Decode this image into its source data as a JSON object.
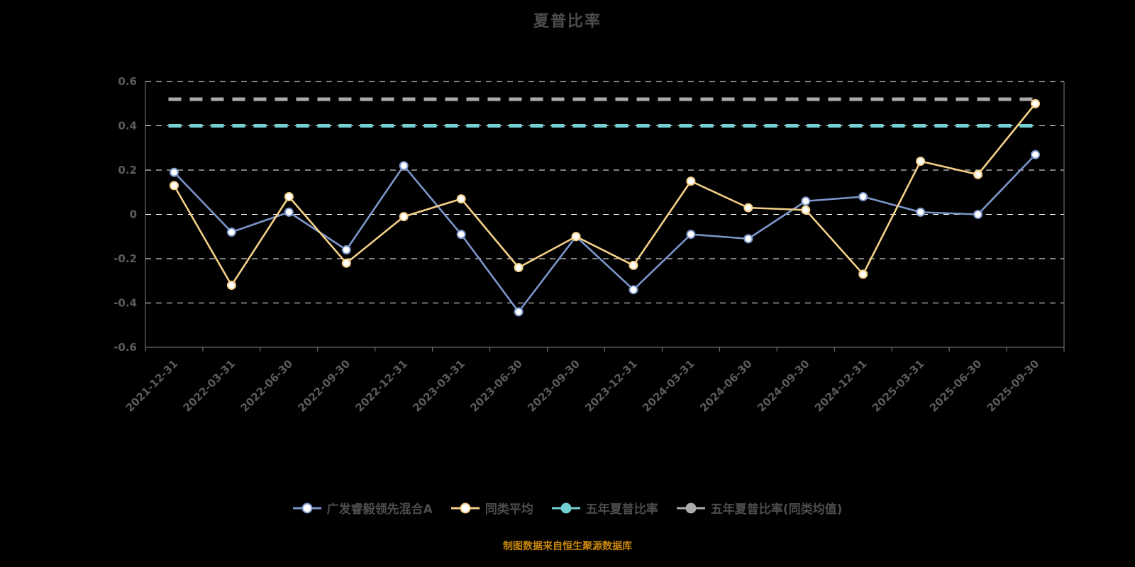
{
  "page": {
    "background": "#000000"
  },
  "chart_data": {
    "type": "line",
    "title": "夏普比率",
    "categories": [
      "2021-12-31",
      "2022-03-31",
      "2022-06-30",
      "2022-09-30",
      "2022-12-31",
      "2023-03-31",
      "2023-06-30",
      "2023-09-30",
      "2023-12-31",
      "2024-03-31",
      "2024-06-30",
      "2024-09-30",
      "2024-12-31",
      "2025-03-31",
      "2025-06-30",
      "2025-09-30"
    ],
    "series": [
      {
        "name": "广发睿毅领先混合A",
        "color": "#7b96ca",
        "marker": "hollow-circle",
        "values": [
          0.19,
          -0.08,
          0.01,
          -0.16,
          0.22,
          -0.09,
          -0.44,
          -0.1,
          -0.34,
          -0.09,
          -0.11,
          0.06,
          0.08,
          0.01,
          0,
          0.27
        ]
      },
      {
        "name": "同类平均",
        "color": "#f5d089",
        "marker": "hollow-circle",
        "values": [
          0.13,
          -0.32,
          0.08,
          -0.22,
          -0.01,
          0.07,
          -0.24,
          -0.1,
          -0.23,
          0.15,
          0.03,
          0.02,
          -0.27,
          0.24,
          0.18,
          0.5
        ]
      }
    ],
    "ref_lines": [
      {
        "name": "五年夏普比率",
        "color": "#73cfd1",
        "value": 0.4
      },
      {
        "name": "五年夏普比率(同类均值)",
        "color": "#aaaaaa",
        "value": 0.52
      }
    ],
    "ylim": [
      -0.6,
      0.6
    ],
    "yticks": [
      0.6,
      0.4,
      0.2,
      0,
      -0.2,
      -0.4,
      -0.6
    ],
    "grid": true,
    "gridline_color": "#ffffff",
    "axis_color": "#808080",
    "legend_position": "bottom"
  },
  "footer": {
    "source_note": "制图数据来自恒生聚源数据库"
  }
}
